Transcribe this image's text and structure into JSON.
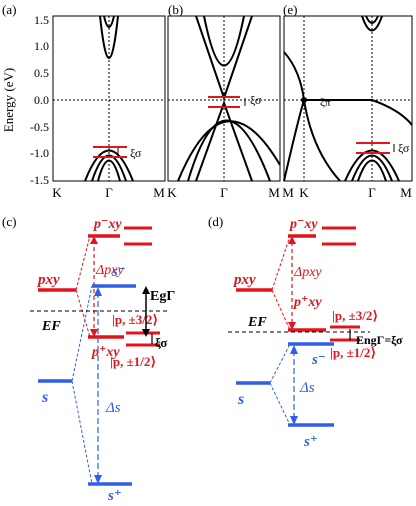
{
  "top": {
    "panel_labels": [
      "(a)",
      "(b)",
      "(e)"
    ],
    "ylabel": "Energy (eV)",
    "yticks": [
      "1.5",
      "1.0",
      "0.5",
      "0.0",
      "-0.5",
      "-1.0",
      "-1.5"
    ],
    "kpath_ab": [
      "K",
      "Γ",
      "M"
    ],
    "kpath_e": [
      "M",
      "K",
      "Γ",
      "M"
    ],
    "xi_sigma": "ξσ",
    "xi_pi": "ξπ"
  },
  "bottom_left": {
    "panel_label": "(c)",
    "pxy": "pxy",
    "pxy_minus": "p⁻xy",
    "pxy_plus": "p⁺xy",
    "delta_pxy": "Δpxy",
    "s_minus": "s⁻",
    "s_plus": "s⁺",
    "s": "s",
    "delta_s": "Δs",
    "EF": "EF",
    "Eg": "EgΓ",
    "state_32": "|p, ±3/2⟩",
    "state_12": "|p, ±1/2⟩",
    "xi": "ξσ"
  },
  "bottom_right": {
    "panel_label": "(d)",
    "pxy": "pxy",
    "pxy_minus": "p⁻xy",
    "pxy_plus": "p⁺xy",
    "delta_pxy": "Δpxy",
    "s_minus": "s⁻",
    "s_plus": "s⁺",
    "s": "s",
    "delta_s": "Δs",
    "EF": "EF",
    "Eng": "EngΓ=ξσ",
    "state_32": "|p, ±3/2⟩",
    "state_12": "|p, ±1/2⟩"
  },
  "colors": {
    "red": "#e0141c",
    "blue": "#2f5ee8",
    "black": "#000000"
  }
}
